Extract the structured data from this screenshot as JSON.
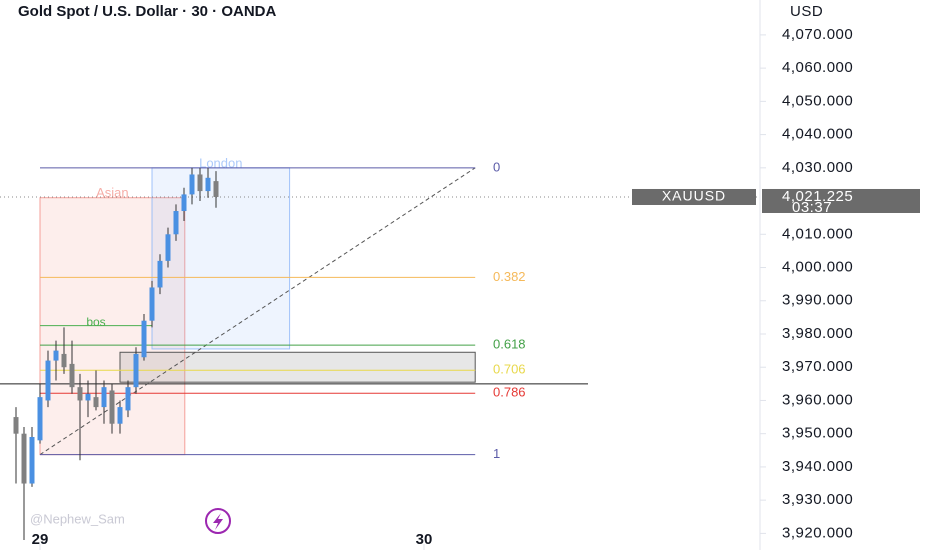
{
  "chart_data": {
    "type": "candlestick",
    "title": "Gold Spot / U.S. Dollar · 30 · OANDA",
    "currency": "USD",
    "symbol": "XAUUSD",
    "last_price": 4021.225,
    "last_price_label": "4,021.225",
    "countdown": "03:37",
    "watermark": "@Nephew_Sam",
    "up_color": "#4a90e2",
    "down_color": "#808080",
    "open": [
      3955,
      3950,
      3935,
      3948,
      3960,
      3972,
      3974,
      3971,
      3964,
      3960,
      3961,
      3958,
      3963,
      3953,
      3957,
      3964,
      3973,
      3984,
      3994,
      4002,
      4010,
      4017,
      4022,
      4028,
      4023,
      4026
    ],
    "high": [
      3958,
      3952,
      3952,
      3965,
      3975,
      3978,
      3982,
      3978,
      3968,
      3966,
      3969,
      3966,
      3965,
      3960,
      3966,
      3976,
      3986,
      3996,
      4004,
      4012,
      4019,
      4024,
      4030,
      4030,
      4030,
      4029
    ],
    "low": [
      3935,
      3918,
      3934,
      3947,
      3958,
      3966,
      3968,
      3962,
      3942,
      3955,
      3957,
      3953,
      3950,
      3950,
      3955,
      3962,
      3972,
      3982,
      3992,
      4000,
      4008,
      4014,
      4019,
      4020,
      4021,
      4018
    ],
    "close": [
      3950,
      3935,
      3949,
      3961,
      3972,
      3975,
      3970,
      3964,
      3960,
      3962,
      3958,
      3964,
      3953,
      3958,
      3964,
      3974,
      3984,
      3994,
      4002,
      4010,
      4017,
      4022,
      4028,
      4023,
      4027,
      4021.225
    ],
    "xlim": [
      -2,
      93
    ],
    "xticks": [
      {
        "value": 3,
        "label": "29"
      },
      {
        "value": 51,
        "label": "30"
      }
    ],
    "ylim": [
      3915,
      4080.5
    ],
    "yticks": [
      {
        "value": 4070,
        "label": "4,070.000"
      },
      {
        "value": 4060,
        "label": "4,060.000"
      },
      {
        "value": 4050,
        "label": "4,050.000"
      },
      {
        "value": 4040,
        "label": "4,040.000"
      },
      {
        "value": 4030,
        "label": "4,030.000"
      },
      {
        "value": 4010,
        "label": "4,010.000"
      },
      {
        "value": 4000,
        "label": "4,000.000"
      },
      {
        "value": 3990,
        "label": "3,990.000"
      },
      {
        "value": 3980,
        "label": "3,980.000"
      },
      {
        "value": 3970,
        "label": "3,970.000"
      },
      {
        "value": 3960,
        "label": "3,960.000"
      },
      {
        "value": 3950,
        "label": "3,950.000"
      },
      {
        "value": 3940,
        "label": "3,940.000"
      },
      {
        "value": 3930,
        "label": "3,930.000"
      },
      {
        "value": 3920,
        "label": "3,920.000"
      }
    ],
    "sessions": [
      {
        "name": "Asian",
        "start": 3,
        "end": 21.1,
        "top": 4021,
        "bottom": 3943.7,
        "color": "#f28b82"
      },
      {
        "name": "London",
        "start": 17,
        "end": 34.2,
        "top": 4030,
        "bottom": 3975.5,
        "color": "#8ab4f8"
      }
    ],
    "order_block": {
      "start": 13,
      "end": 57.4,
      "top": 3974.5,
      "bottom": 3965.5
    },
    "support_line": {
      "start": -2,
      "end": 71.5,
      "price": 3965
    },
    "bos": {
      "label": "bos",
      "start": 3,
      "end": 17,
      "price": 3982.5
    },
    "fib": {
      "start": 3,
      "end": 57.4,
      "high": 4030,
      "low": 3943.7,
      "levels": [
        {
          "ratio": 0,
          "color": "#5b5ba8"
        },
        {
          "ratio": 0.382,
          "color": "#f5b95a"
        },
        {
          "ratio": 0.618,
          "color": "#43a047"
        },
        {
          "ratio": 0.706,
          "color": "#e8d84a"
        },
        {
          "ratio": 0.786,
          "color": "#e53935"
        },
        {
          "ratio": 1,
          "color": "#5b5ba8"
        }
      ]
    }
  }
}
